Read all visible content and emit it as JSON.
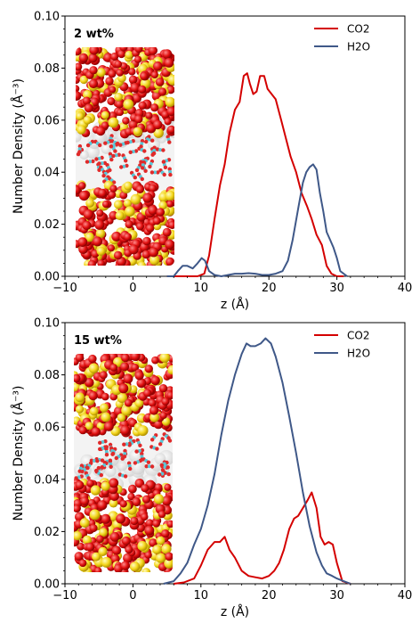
{
  "chart_data": [
    {
      "type": "line",
      "annotation": "2 wt%",
      "xlabel": "z (Å)",
      "ylabel": "Number Density (Å⁻³)",
      "xlim": [
        -10,
        40
      ],
      "ylim": [
        0,
        0.1
      ],
      "xticks": [
        -10,
        0,
        10,
        20,
        30,
        40
      ],
      "xtick_labels": [
        "−10",
        "0",
        "10",
        "20",
        "30",
        "40"
      ],
      "yticks": [
        0,
        0.02,
        0.04,
        0.06,
        0.08,
        0.1
      ],
      "ytick_labels": [
        "0.00",
        "0.02",
        "0.04",
        "0.06",
        "0.08",
        "0.10"
      ],
      "legend_position": "top-right",
      "grid": false,
      "inset_image": "molecular snapshot: silica slab (red O / yellow Si spheres) with confined CO2 and H2O molecules",
      "series": [
        {
          "name": "CO2",
          "color": "#d40000",
          "x": [
            5,
            8,
            9.5,
            10.5,
            11.2,
            12,
            12.8,
            13.5,
            14.2,
            15,
            15.7,
            16.3,
            16.8,
            17.2,
            17.7,
            18.2,
            18.7,
            19.3,
            19.8,
            20.4,
            21,
            21.8,
            22.5,
            23.2,
            24,
            24.8,
            25.6,
            26.3,
            27,
            27.8,
            28.5,
            29.2,
            30,
            31
          ],
          "y": [
            0,
            0,
            0,
            0.001,
            0.008,
            0.022,
            0.035,
            0.043,
            0.055,
            0.064,
            0.067,
            0.077,
            0.078,
            0.074,
            0.07,
            0.071,
            0.077,
            0.077,
            0.072,
            0.07,
            0.068,
            0.06,
            0.053,
            0.046,
            0.04,
            0.032,
            0.027,
            0.022,
            0.016,
            0.012,
            0.004,
            0.001,
            0,
            0
          ]
        },
        {
          "name": "H2O",
          "color": "#3f5888",
          "x": [
            5,
            6,
            6.6,
            7.3,
            8,
            8.8,
            9.5,
            10.1,
            10.6,
            11.2,
            12,
            13,
            14,
            15,
            16,
            17,
            18,
            19,
            20,
            21,
            22,
            22.8,
            23.5,
            24.3,
            25,
            25.5,
            26,
            26.5,
            27,
            27.5,
            28,
            28.5,
            29,
            29.5,
            30,
            30.5,
            31.5
          ],
          "y": [
            0,
            0,
            0.002,
            0.004,
            0.004,
            0.003,
            0.005,
            0.007,
            0.006,
            0.002,
            0.0005,
            0,
            0.0005,
            0.001,
            0.001,
            0.0012,
            0.001,
            0.0005,
            0.0005,
            0.001,
            0.002,
            0.006,
            0.014,
            0.026,
            0.036,
            0.04,
            0.042,
            0.043,
            0.041,
            0.032,
            0.025,
            0.017,
            0.014,
            0.011,
            0.007,
            0.002,
            0
          ]
        }
      ]
    },
    {
      "type": "line",
      "annotation": "15 wt%",
      "xlabel": "z (Å)",
      "ylabel": "Number Density (Å⁻³)",
      "xlim": [
        -10,
        40
      ],
      "ylim": [
        0,
        0.1
      ],
      "xticks": [
        -10,
        0,
        10,
        20,
        30,
        40
      ],
      "xtick_labels": [
        "−10",
        "0",
        "10",
        "20",
        "30",
        "40"
      ],
      "yticks": [
        0,
        0.02,
        0.04,
        0.06,
        0.08,
        0.1
      ],
      "ytick_labels": [
        "0.00",
        "0.02",
        "0.04",
        "0.06",
        "0.08",
        "0.10"
      ],
      "legend_position": "top-right",
      "grid": false,
      "inset_image": "molecular snapshot: silica slab (red O / yellow Si spheres) with confined CO2 and H2O molecules",
      "series": [
        {
          "name": "CO2",
          "color": "#d40000",
          "x": [
            6,
            7.5,
            9,
            10,
            11,
            12,
            12.8,
            13.5,
            14.2,
            15,
            16,
            17,
            18,
            19,
            20,
            20.8,
            21.5,
            22.2,
            23,
            23.7,
            24.3,
            25,
            25.7,
            26.3,
            27,
            27.6,
            28.2,
            28.8,
            29.4,
            30,
            30.8,
            32
          ],
          "y": [
            0,
            0.0005,
            0.002,
            0.007,
            0.013,
            0.016,
            0.016,
            0.018,
            0.013,
            0.01,
            0.005,
            0.003,
            0.0025,
            0.002,
            0.003,
            0.005,
            0.008,
            0.013,
            0.021,
            0.025,
            0.026,
            0.029,
            0.032,
            0.035,
            0.029,
            0.018,
            0.015,
            0.016,
            0.015,
            0.008,
            0.001,
            0
          ]
        },
        {
          "name": "H2O",
          "color": "#3f5888",
          "x": [
            4.5,
            6,
            7,
            8,
            9,
            10,
            11,
            12,
            13,
            14,
            15,
            16,
            16.7,
            17.3,
            18,
            18.8,
            19.5,
            20.3,
            21,
            22,
            23,
            24,
            25,
            26,
            27,
            27.8,
            28.5,
            29.3,
            30,
            31,
            32
          ],
          "y": [
            0,
            0.001,
            0.004,
            0.008,
            0.015,
            0.021,
            0.03,
            0.042,
            0.057,
            0.07,
            0.08,
            0.088,
            0.092,
            0.091,
            0.091,
            0.092,
            0.094,
            0.092,
            0.087,
            0.077,
            0.064,
            0.05,
            0.035,
            0.022,
            0.012,
            0.007,
            0.004,
            0.003,
            0.002,
            0.001,
            0
          ]
        }
      ]
    }
  ]
}
